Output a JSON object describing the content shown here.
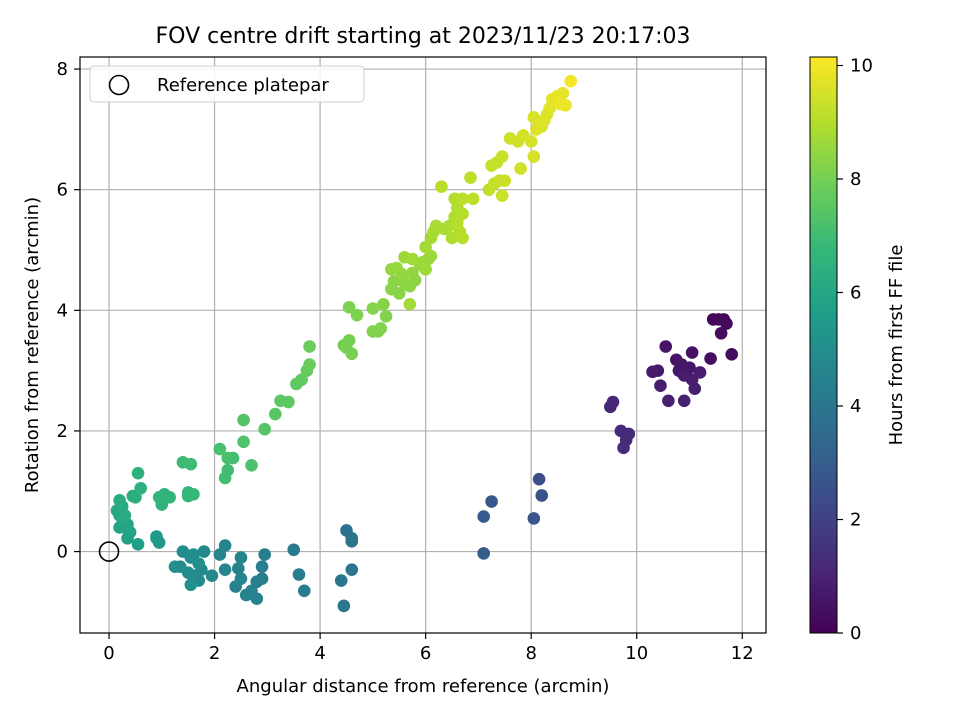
{
  "chart_data": {
    "type": "scatter",
    "title": "FOV centre drift starting at 2023/11/23 20:17:03",
    "xlabel": "Angular distance from reference (arcmin)",
    "ylabel": "Rotation from reference (arcmin)",
    "xlim": [
      -0.55,
      12.45
    ],
    "ylim": [
      -1.35,
      8.2
    ],
    "xticks": [
      0,
      2,
      4,
      6,
      8,
      10,
      12
    ],
    "yticks": [
      0,
      2,
      4,
      6,
      8
    ],
    "grid": true,
    "legend": {
      "placement": "top-left",
      "entries": [
        "Reference platepar"
      ]
    },
    "reference_point": {
      "x": 0,
      "y": 0
    },
    "colorbar": {
      "label": "Hours from first FF file",
      "range": [
        0,
        10.15
      ],
      "ticks": [
        0,
        2,
        4,
        6,
        8,
        10
      ],
      "colormap": "viridis",
      "stops": [
        "#440154",
        "#482878",
        "#3e4989",
        "#31688e",
        "#26828e",
        "#1f9e89",
        "#35b779",
        "#6ece58",
        "#b5de2b",
        "#fde725"
      ]
    },
    "points": [
      [
        11.45,
        3.85,
        0.1
      ],
      [
        11.55,
        3.85,
        0.15
      ],
      [
        11.65,
        3.85,
        0.2
      ],
      [
        11.7,
        3.78,
        0.25
      ],
      [
        11.6,
        3.62,
        0.3
      ],
      [
        11.8,
        3.27,
        0.35
      ],
      [
        11.4,
        3.2,
        0.4
      ],
      [
        11.05,
        3.3,
        0.45
      ],
      [
        10.75,
        3.18,
        0.5
      ],
      [
        10.55,
        3.4,
        0.55
      ],
      [
        10.85,
        3.1,
        0.6
      ],
      [
        11.0,
        3.05,
        0.62
      ],
      [
        10.8,
        3.0,
        0.65
      ],
      [
        10.4,
        3.0,
        0.7
      ],
      [
        10.3,
        2.98,
        0.75
      ],
      [
        10.9,
        2.92,
        0.78
      ],
      [
        11.2,
        2.97,
        0.8
      ],
      [
        11.05,
        2.85,
        0.82
      ],
      [
        10.45,
        2.75,
        0.85
      ],
      [
        11.1,
        2.7,
        0.88
      ],
      [
        10.6,
        2.5,
        0.9
      ],
      [
        10.9,
        2.5,
        0.95
      ],
      [
        9.55,
        2.48,
        1.05
      ],
      [
        9.5,
        2.4,
        1.1
      ],
      [
        9.7,
        2.0,
        1.15
      ],
      [
        9.85,
        1.95,
        1.2
      ],
      [
        9.8,
        1.85,
        1.22
      ],
      [
        9.75,
        1.72,
        1.25
      ],
      [
        8.15,
        1.2,
        2.5
      ],
      [
        8.2,
        0.93,
        2.6
      ],
      [
        8.05,
        0.55,
        2.7
      ],
      [
        7.25,
        0.83,
        2.8
      ],
      [
        7.1,
        0.58,
        2.9
      ],
      [
        7.1,
        -0.03,
        3.0
      ],
      [
        4.5,
        0.35,
        3.8
      ],
      [
        4.6,
        0.22,
        3.85
      ],
      [
        4.6,
        0.17,
        3.9
      ],
      [
        4.6,
        -0.3,
        3.95
      ],
      [
        4.4,
        -0.48,
        4.0
      ],
      [
        4.45,
        -0.9,
        4.05
      ],
      [
        3.5,
        0.03,
        4.15
      ],
      [
        3.6,
        -0.38,
        4.2
      ],
      [
        3.7,
        -0.65,
        4.25
      ],
      [
        2.95,
        -0.05,
        4.3
      ],
      [
        2.9,
        -0.25,
        4.35
      ],
      [
        2.9,
        -0.45,
        4.4
      ],
      [
        2.8,
        -0.5,
        4.42
      ],
      [
        2.7,
        -0.65,
        4.45
      ],
      [
        2.8,
        -0.78,
        4.5
      ],
      [
        2.6,
        -0.72,
        4.52
      ],
      [
        2.4,
        -0.58,
        4.55
      ],
      [
        2.5,
        -0.45,
        4.58
      ],
      [
        2.45,
        -0.28,
        4.6
      ],
      [
        2.5,
        -0.1,
        4.62
      ],
      [
        2.2,
        0.1,
        4.65
      ],
      [
        2.1,
        -0.05,
        4.7
      ],
      [
        2.2,
        -0.3,
        4.72
      ],
      [
        1.95,
        -0.4,
        4.75
      ],
      [
        1.8,
        0.0,
        4.78
      ],
      [
        1.75,
        -0.3,
        4.8
      ],
      [
        1.7,
        -0.48,
        4.82
      ],
      [
        1.6,
        -0.4,
        4.85
      ],
      [
        1.55,
        -0.1,
        4.88
      ],
      [
        1.5,
        -0.35,
        4.9
      ],
      [
        1.4,
        0.0,
        4.92
      ],
      [
        1.35,
        -0.25,
        4.95
      ],
      [
        1.25,
        -0.25,
        4.98
      ],
      [
        1.6,
        -0.05,
        5.0
      ],
      [
        1.7,
        -0.2,
        5.05
      ],
      [
        1.55,
        -0.55,
        5.1
      ],
      [
        0.9,
        0.25,
        5.4
      ],
      [
        0.95,
        0.15,
        5.45
      ],
      [
        0.9,
        0.22,
        5.5
      ],
      [
        0.55,
        0.12,
        5.7
      ],
      [
        0.35,
        0.22,
        5.75
      ],
      [
        0.4,
        0.32,
        5.8
      ],
      [
        0.3,
        0.4,
        5.85
      ],
      [
        0.2,
        0.4,
        5.9
      ],
      [
        0.35,
        0.45,
        5.95
      ],
      [
        0.25,
        0.55,
        6.0
      ],
      [
        0.2,
        0.6,
        6.05
      ],
      [
        0.15,
        0.68,
        6.1
      ],
      [
        0.25,
        0.75,
        6.15
      ],
      [
        0.3,
        0.6,
        6.2
      ],
      [
        0.2,
        0.85,
        6.25
      ],
      [
        0.45,
        0.92,
        6.3
      ],
      [
        0.5,
        0.9,
        6.35
      ],
      [
        0.6,
        1.05,
        6.4
      ],
      [
        0.55,
        1.3,
        6.45
      ],
      [
        1.0,
        0.78,
        6.5
      ],
      [
        1.05,
        0.95,
        6.55
      ],
      [
        1.15,
        0.9,
        6.6
      ],
      [
        0.95,
        0.9,
        6.65
      ],
      [
        1.5,
        0.92,
        6.7
      ],
      [
        1.5,
        0.98,
        6.75
      ],
      [
        1.6,
        0.95,
        6.8
      ],
      [
        1.4,
        1.48,
        6.9
      ],
      [
        1.55,
        1.45,
        6.95
      ],
      [
        2.25,
        1.35,
        7.0
      ],
      [
        2.2,
        1.22,
        7.05
      ],
      [
        2.35,
        1.55,
        7.1
      ],
      [
        2.25,
        1.55,
        7.15
      ],
      [
        2.1,
        1.7,
        7.2
      ],
      [
        2.7,
        1.43,
        7.25
      ],
      [
        2.55,
        1.82,
        7.3
      ],
      [
        2.55,
        2.18,
        7.35
      ],
      [
        2.95,
        2.03,
        7.4
      ],
      [
        3.15,
        2.28,
        7.45
      ],
      [
        3.25,
        2.5,
        7.5
      ],
      [
        3.4,
        2.48,
        7.55
      ],
      [
        3.55,
        2.78,
        7.6
      ],
      [
        3.65,
        2.85,
        7.65
      ],
      [
        3.75,
        3.0,
        7.7
      ],
      [
        3.8,
        3.1,
        7.75
      ],
      [
        3.8,
        3.4,
        7.8
      ],
      [
        4.45,
        3.42,
        7.95
      ],
      [
        4.55,
        3.5,
        8.0
      ],
      [
        4.5,
        3.38,
        8.02
      ],
      [
        4.6,
        3.28,
        8.05
      ],
      [
        4.55,
        4.05,
        8.1
      ],
      [
        4.7,
        3.92,
        8.12
      ],
      [
        5.0,
        3.65,
        8.15
      ],
      [
        5.1,
        3.65,
        8.18
      ],
      [
        5.15,
        3.7,
        8.2
      ],
      [
        5.25,
        3.9,
        8.22
      ],
      [
        5.0,
        4.03,
        8.25
      ],
      [
        5.2,
        4.1,
        8.28
      ],
      [
        5.35,
        4.35,
        8.3
      ],
      [
        5.5,
        4.28,
        8.32
      ],
      [
        5.4,
        4.48,
        8.35
      ],
      [
        5.6,
        4.45,
        8.38
      ],
      [
        5.7,
        4.4,
        8.4
      ],
      [
        5.8,
        4.5,
        8.42
      ],
      [
        5.75,
        4.62,
        8.45
      ],
      [
        5.55,
        4.6,
        8.48
      ],
      [
        5.35,
        4.68,
        8.5
      ],
      [
        5.45,
        4.7,
        8.52
      ],
      [
        5.9,
        4.75,
        8.55
      ],
      [
        5.95,
        4.8,
        8.57
      ],
      [
        6.05,
        4.85,
        8.6
      ],
      [
        6.1,
        4.9,
        8.62
      ],
      [
        6.0,
        4.68,
        8.65
      ],
      [
        5.6,
        4.88,
        8.67
      ],
      [
        5.75,
        4.85,
        8.7
      ],
      [
        5.7,
        4.1,
        8.72
      ],
      [
        6.0,
        5.05,
        8.75
      ],
      [
        6.1,
        5.2,
        8.77
      ],
      [
        6.15,
        5.3,
        8.8
      ],
      [
        6.2,
        5.4,
        8.82
      ],
      [
        6.35,
        5.35,
        8.85
      ],
      [
        6.45,
        5.4,
        8.87
      ],
      [
        6.5,
        5.2,
        8.9
      ],
      [
        6.55,
        5.55,
        8.92
      ],
      [
        6.6,
        5.7,
        8.95
      ],
      [
        6.55,
        5.85,
        8.97
      ],
      [
        6.7,
        5.6,
        9.0
      ],
      [
        6.65,
        5.3,
        9.02
      ],
      [
        6.7,
        5.2,
        9.05
      ],
      [
        6.6,
        5.45,
        9.07
      ],
      [
        6.3,
        6.05,
        9.1
      ],
      [
        6.7,
        5.85,
        9.12
      ],
      [
        6.9,
        5.85,
        9.15
      ],
      [
        6.85,
        6.2,
        9.17
      ],
      [
        7.2,
        6.0,
        9.2
      ],
      [
        7.3,
        6.1,
        9.22
      ],
      [
        7.25,
        6.4,
        9.25
      ],
      [
        7.35,
        6.45,
        9.27
      ],
      [
        7.45,
        6.55,
        9.3
      ],
      [
        7.4,
        6.15,
        9.32
      ],
      [
        7.45,
        5.9,
        9.35
      ],
      [
        7.5,
        6.15,
        9.37
      ],
      [
        7.6,
        6.85,
        9.4
      ],
      [
        7.75,
        6.8,
        9.42
      ],
      [
        7.8,
        6.35,
        9.45
      ],
      [
        7.85,
        6.9,
        9.47
      ],
      [
        8.05,
        6.55,
        9.5
      ],
      [
        8.0,
        6.8,
        9.52
      ],
      [
        8.05,
        7.2,
        9.55
      ],
      [
        8.2,
        7.05,
        9.57
      ],
      [
        8.1,
        7.0,
        9.6
      ],
      [
        8.15,
        7.1,
        9.62
      ],
      [
        8.25,
        7.15,
        9.65
      ],
      [
        8.3,
        7.25,
        9.67
      ],
      [
        8.35,
        7.35,
        9.7
      ],
      [
        8.4,
        7.5,
        9.72
      ],
      [
        8.45,
        7.45,
        9.75
      ],
      [
        8.5,
        7.55,
        9.77
      ],
      [
        8.6,
        7.6,
        9.8
      ],
      [
        8.65,
        7.4,
        9.85
      ],
      [
        8.55,
        7.42,
        9.9
      ],
      [
        8.75,
        7.8,
        10.0
      ]
    ]
  }
}
